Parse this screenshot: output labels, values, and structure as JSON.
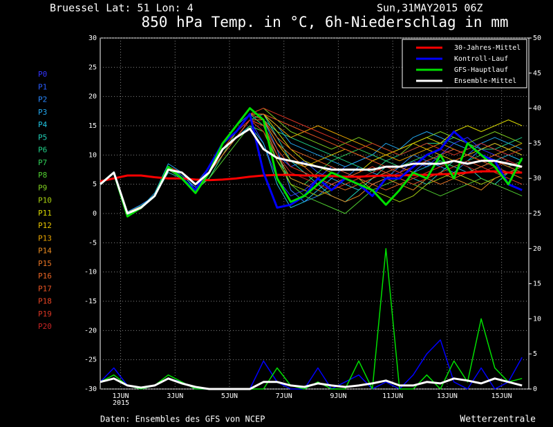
{
  "chart_data": {
    "type": "line",
    "location": "Bruessel  Lat: 51 Lon: 4",
    "run": "Sun,31MAY2015 06Z",
    "title": "850 hPa Temp. in °C, 6h-Niederschlag in mm",
    "footer_left": "Daten: Ensembles des GFS von NCEP",
    "footer_right": "Wetterzentrale",
    "x_year": "2015",
    "x": [
      0.25,
      0.75,
      1.25,
      1.75,
      2.25,
      2.75,
      3.25,
      3.75,
      4.25,
      4.75,
      5.25,
      5.75,
      6.25,
      6.75,
      7.25,
      7.75,
      8.25,
      8.75,
      9.25,
      9.75,
      10.25,
      10.75,
      11.25,
      11.75,
      12.25,
      12.75,
      13.25,
      13.75,
      14.25,
      14.75,
      15.25,
      15.75
    ],
    "xlim": [
      0.25,
      16.0
    ],
    "xticks": [
      {
        "value": 1,
        "label": "1JUN"
      },
      {
        "value": 3,
        "label": "3JUN"
      },
      {
        "value": 5,
        "label": "5JUN"
      },
      {
        "value": 7,
        "label": "7JUN"
      },
      {
        "value": 9,
        "label": "9JUN"
      },
      {
        "value": 11,
        "label": "11JUN"
      },
      {
        "value": 13,
        "label": "13JUN"
      },
      {
        "value": 15,
        "label": "15JUN"
      }
    ],
    "ylim": [
      -30,
      30
    ],
    "yticks": [
      -30,
      -25,
      -20,
      -15,
      -10,
      -5,
      0,
      5,
      10,
      15,
      20,
      25,
      30
    ],
    "y2lim": [
      0,
      50
    ],
    "y2ticks": [
      0,
      5,
      10,
      15,
      20,
      25,
      30,
      35,
      40,
      45,
      50
    ],
    "grid": true,
    "members": [
      {
        "name": "P0",
        "color": "#3434ff",
        "values": [
          5,
          7,
          -0.2,
          1,
          3,
          8,
          6,
          4,
          7,
          11,
          14,
          16,
          12,
          6,
          3,
          4,
          6,
          8,
          7,
          6,
          5,
          6,
          7,
          9,
          8,
          10,
          12,
          13,
          11,
          10,
          9,
          8
        ]
      },
      {
        "name": "P1",
        "color": "#2a5cff",
        "values": [
          5,
          7,
          0,
          1.2,
          3,
          7.5,
          7,
          5,
          8,
          12,
          15,
          17,
          15,
          10,
          8,
          9,
          7,
          6,
          8,
          9,
          10,
          9,
          8,
          7,
          9,
          10,
          11,
          10,
          12,
          11,
          10,
          9
        ]
      },
      {
        "name": "P2",
        "color": "#2888ff",
        "values": [
          5,
          7,
          0.3,
          1.5,
          3,
          8,
          6.5,
          4.5,
          6,
          10,
          13,
          16,
          16,
          11,
          4,
          2,
          3,
          5,
          6,
          8,
          7,
          6,
          8,
          10,
          9,
          8,
          7,
          9,
          11,
          12,
          11,
          10
        ]
      },
      {
        "name": "P3",
        "color": "#22a8f0",
        "values": [
          5,
          7,
          -0.2,
          1,
          3.5,
          8.5,
          7,
          5,
          7,
          11,
          14,
          17,
          17,
          15,
          12,
          11,
          10,
          9,
          8,
          9,
          10,
          12,
          11,
          13,
          14,
          13,
          12,
          11,
          12,
          13,
          12,
          11
        ]
      },
      {
        "name": "P4",
        "color": "#20c4e0",
        "values": [
          5,
          7,
          0,
          1,
          3,
          8,
          7,
          4,
          6,
          10,
          13,
          15,
          12,
          5,
          1,
          2,
          4,
          6,
          5,
          4,
          6,
          7,
          8,
          7,
          8,
          9,
          8,
          7,
          8,
          9,
          10,
          9
        ]
      },
      {
        "name": "P5",
        "color": "#20d0b8",
        "values": [
          5,
          7,
          0.2,
          1.3,
          3,
          7,
          6,
          4,
          6,
          10,
          13,
          16,
          17,
          13,
          9,
          7,
          5,
          3,
          2,
          4,
          6,
          8,
          7,
          6,
          5,
          7,
          9,
          8,
          6,
          5,
          7,
          8
        ]
      },
      {
        "name": "P6",
        "color": "#20d088",
        "values": [
          5,
          7,
          -0.3,
          1,
          3,
          8,
          7,
          5,
          7,
          11,
          13,
          16,
          16,
          14,
          13,
          12,
          11,
          10,
          9,
          8,
          7,
          9,
          10,
          11,
          12,
          12,
          13,
          12,
          11,
          11,
          12,
          13
        ]
      },
      {
        "name": "P7",
        "color": "#30d058",
        "values": [
          5,
          7,
          0,
          1,
          3,
          8,
          7,
          5,
          6,
          10,
          14,
          17,
          15,
          9,
          6,
          5,
          7,
          9,
          10,
          11,
          10,
          9,
          8,
          9,
          10,
          9,
          8,
          9,
          10,
          9,
          8,
          9
        ]
      },
      {
        "name": "P8",
        "color": "#50d030",
        "values": [
          5,
          7,
          0,
          1.2,
          3,
          7.5,
          6,
          4,
          6,
          9,
          12,
          15,
          14,
          10,
          5,
          3,
          2,
          1,
          0,
          2,
          4,
          5,
          6,
          5,
          4,
          3,
          4,
          5,
          6,
          5,
          4,
          3
        ]
      },
      {
        "name": "P9",
        "color": "#80d020",
        "values": [
          5,
          7,
          -0.4,
          0.8,
          3,
          8,
          7,
          5,
          7,
          11,
          14,
          17,
          18,
          16,
          14,
          13,
          12,
          11,
          12,
          13,
          12,
          11,
          10,
          12,
          13,
          14,
          13,
          12,
          13,
          14,
          13,
          12
        ]
      },
      {
        "name": "P10",
        "color": "#a8d010",
        "values": [
          5,
          7,
          0,
          1,
          3,
          8,
          7,
          5,
          7,
          11,
          13,
          16,
          14,
          9,
          5,
          4,
          3,
          4,
          5,
          6,
          4,
          3,
          2,
          3,
          5,
          6,
          7,
          6,
          5,
          6,
          7,
          6
        ]
      },
      {
        "name": "P11",
        "color": "#d8d800",
        "values": [
          5,
          7,
          0.1,
          1.1,
          3,
          8,
          7,
          5,
          7,
          11,
          14,
          17,
          17,
          14,
          11,
          9,
          8,
          7,
          6,
          7,
          9,
          10,
          11,
          12,
          13,
          12,
          14,
          15,
          14,
          15,
          16,
          15
        ]
      },
      {
        "name": "P12",
        "color": "#e8c400",
        "values": [
          5,
          7,
          0,
          1,
          3,
          8,
          7,
          5,
          7,
          10,
          13,
          16,
          16,
          12,
          9,
          8,
          9,
          10,
          11,
          10,
          9,
          10,
          11,
          12,
          11,
          10,
          9,
          10,
          11,
          12,
          11,
          10
        ]
      },
      {
        "name": "P13",
        "color": "#e8a400",
        "values": [
          5,
          7,
          0,
          1,
          3,
          8,
          6,
          4,
          7,
          11,
          14,
          17,
          17,
          15,
          13,
          14,
          15,
          14,
          13,
          12,
          11,
          10,
          9,
          10,
          11,
          12,
          11,
          10,
          9,
          10,
          11,
          12
        ]
      },
      {
        "name": "P14",
        "color": "#e88a20",
        "values": [
          5,
          7,
          0.2,
          1.2,
          3,
          8,
          7,
          5,
          7,
          11,
          14,
          16,
          15,
          10,
          6,
          5,
          4,
          3,
          2,
          3,
          5,
          6,
          5,
          4,
          6,
          7,
          6,
          5,
          4,
          6,
          7,
          8
        ]
      },
      {
        "name": "P15",
        "color": "#e87424",
        "values": [
          5,
          7,
          0,
          1,
          3,
          8,
          7,
          5,
          7,
          11,
          14,
          17,
          16,
          12,
          10,
          8,
          6,
          5,
          4,
          5,
          6,
          7,
          8,
          7,
          6,
          5,
          6,
          7,
          8,
          9,
          8,
          7
        ]
      },
      {
        "name": "P16",
        "color": "#e86424",
        "values": [
          5,
          7,
          -0.1,
          1,
          3,
          8,
          7,
          5,
          7,
          10,
          13,
          16,
          16,
          13,
          11,
          10,
          9,
          8,
          7,
          6,
          5,
          4,
          5,
          6,
          7,
          8,
          9,
          10,
          9,
          8,
          7,
          6
        ]
      },
      {
        "name": "P17",
        "color": "#e85424",
        "values": [
          5,
          7,
          0,
          1,
          3,
          8,
          7,
          5,
          7,
          11,
          14,
          17,
          17,
          16,
          15,
          14,
          13,
          12,
          11,
          10,
          9,
          8,
          7,
          8,
          9,
          10,
          11,
          10,
          9,
          10,
          9,
          8
        ]
      },
      {
        "name": "P18",
        "color": "#e84424",
        "values": [
          5,
          7,
          0,
          1,
          3,
          8,
          7,
          5,
          7,
          11,
          13,
          16,
          15,
          11,
          8,
          7,
          6,
          5,
          6,
          7,
          8,
          7,
          6,
          5,
          6,
          7,
          8,
          9,
          8,
          7,
          6,
          5
        ]
      },
      {
        "name": "P19",
        "color": "#d83424",
        "values": [
          5,
          7,
          0,
          1,
          3,
          8,
          7,
          5,
          7,
          11,
          14,
          17,
          18,
          17,
          16,
          15,
          14,
          13,
          12,
          11,
          12,
          11,
          10,
          11,
          12,
          11,
          10,
          11,
          12,
          11,
          10,
          11
        ]
      },
      {
        "name": "P20",
        "color": "#c82424",
        "values": [
          5,
          7,
          0,
          1,
          3,
          8,
          7,
          5,
          7,
          11,
          14,
          16,
          14,
          10,
          7,
          6,
          5,
          4,
          5,
          6,
          7,
          8,
          7,
          6,
          7,
          8,
          9,
          8,
          7,
          8,
          9,
          8
        ]
      }
    ],
    "series": [
      {
        "name": "30-Jahres-Mittel",
        "color": "#ff0000",
        "values": [
          5.5,
          6,
          6.5,
          6.5,
          6.2,
          6,
          6,
          5.8,
          5.7,
          5.8,
          6,
          6.3,
          6.5,
          6.6,
          6.6,
          6.5,
          6.5,
          6.4,
          6.3,
          6.3,
          6.4,
          6.5,
          6.5,
          6.6,
          6.6,
          6.7,
          6.8,
          7,
          7.2,
          7.2,
          7,
          7
        ]
      },
      {
        "name": "Kontroll-Lauf",
        "color": "#0000ff",
        "values": [
          5,
          7,
          -0.3,
          1,
          3,
          8,
          6,
          4,
          8,
          12,
          14,
          17,
          7,
          1,
          1.5,
          3,
          6,
          4,
          6,
          5,
          3,
          6,
          6,
          8,
          10,
          11,
          14,
          12,
          10,
          9,
          5,
          4
        ],
        "precip": [
          1,
          3,
          0.5,
          0,
          0.5,
          1.5,
          1,
          0,
          0,
          0,
          0,
          0,
          4,
          1,
          0,
          0,
          3,
          0,
          1,
          2,
          0,
          1,
          0,
          2,
          5,
          7,
          1,
          0,
          3,
          0,
          1,
          4.5
        ]
      },
      {
        "name": "GFS-Hauptlauf",
        "color": "#00e000",
        "values": [
          5,
          7,
          -0.5,
          1,
          3,
          8,
          6,
          3.5,
          7,
          12,
          15,
          18,
          16,
          6,
          2,
          3,
          5,
          7,
          6,
          5,
          4,
          1.5,
          4,
          7,
          6,
          10,
          6,
          12,
          10,
          8,
          5,
          9.5
        ],
        "precip": [
          1,
          2,
          0.5,
          0,
          0.5,
          2,
          1,
          0,
          0,
          0,
          0,
          0,
          0,
          3,
          0.5,
          0,
          1,
          0,
          0,
          4,
          0,
          20,
          0,
          0,
          2,
          0,
          4,
          1,
          10,
          3,
          1,
          1.5
        ]
      },
      {
        "name": "Ensemble-Mittel",
        "color": "#ffffff",
        "values": [
          5,
          7,
          0,
          1,
          3,
          7.5,
          7,
          5,
          7,
          11,
          13,
          14.5,
          11,
          9.5,
          9,
          8.5,
          8,
          7.5,
          7.5,
          7.5,
          7.5,
          8,
          8,
          8.5,
          8.5,
          8.5,
          9,
          8.5,
          9,
          9,
          8.5,
          8
        ],
        "precip": [
          1,
          1.5,
          0.5,
          0.2,
          0.5,
          1.5,
          0.8,
          0.3,
          0,
          0,
          0,
          0,
          1,
          1,
          0.5,
          0.3,
          0.8,
          0.5,
          0.3,
          0.5,
          0.8,
          1.2,
          0.5,
          0.5,
          1,
          0.8,
          1.5,
          1.2,
          0.8,
          1.5,
          1,
          0.5
        ]
      }
    ]
  }
}
